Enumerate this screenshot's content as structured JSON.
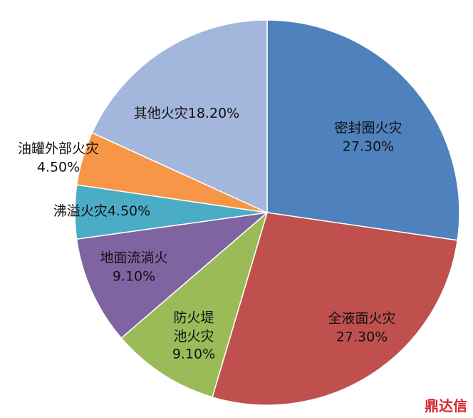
{
  "chart_data": {
    "type": "pie",
    "categories": [
      "密封圈火灾",
      "全液面火灾",
      "防火堤池火灾",
      "地面流淌火",
      "沸溢火灾",
      "油罐外部火灾",
      "其他火灾"
    ],
    "values": [
      27.3,
      27.3,
      9.1,
      9.1,
      4.5,
      4.5,
      18.2
    ],
    "value_labels": [
      "27.30%",
      "27.30%",
      "9.10%",
      "9.10%",
      "4.50%",
      "4.50%",
      "18.20%"
    ],
    "colors": [
      "#4f81bd",
      "#c0504d",
      "#9bbb59",
      "#8064a2",
      "#4bacc6",
      "#f79646",
      "#a3b6db"
    ]
  },
  "watermark": "鼎达信"
}
